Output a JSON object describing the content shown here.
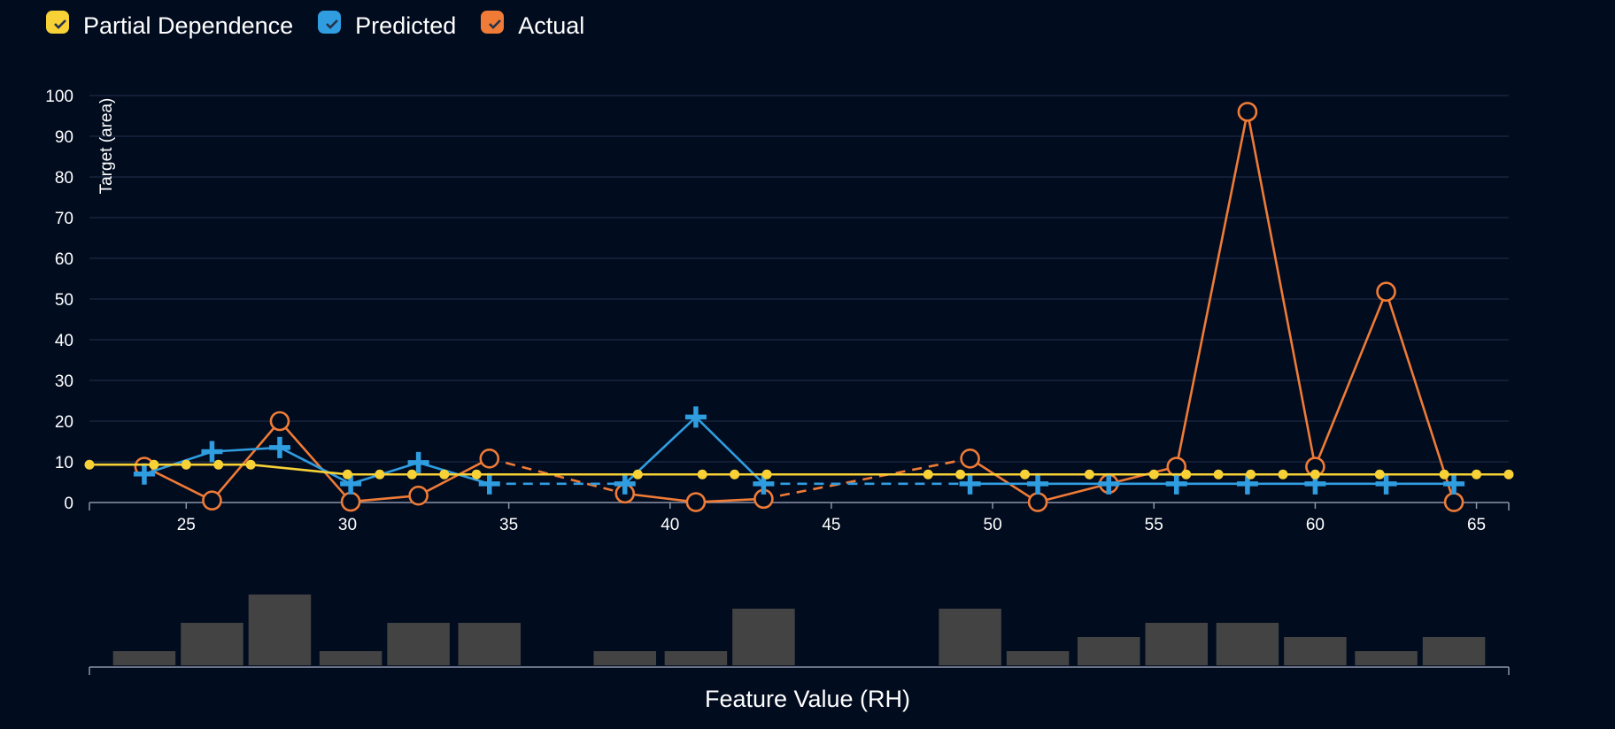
{
  "colors": {
    "background": "#020c1f",
    "grid": "#1c2a44",
    "axis": "#8b94a8",
    "partial": "#f7d136",
    "predicted": "#2f9de0",
    "actual": "#ef7b36",
    "histogram": "#434343"
  },
  "legend": [
    {
      "label": "Partial Dependence",
      "color": "#f7d136",
      "icon": "check-icon"
    },
    {
      "label": "Predicted",
      "color": "#2f9de0",
      "icon": "check-icon"
    },
    {
      "label": "Actual",
      "color": "#ef7b36",
      "icon": "check-icon"
    }
  ],
  "chart_data": {
    "type": "line",
    "xlabel": "Feature Value (RH)",
    "ylabel": "Target (area)",
    "xlim": [
      22,
      66
    ],
    "ylim": [
      0,
      100
    ],
    "x_ticks": [
      25,
      30,
      35,
      40,
      45,
      50,
      55,
      60,
      65
    ],
    "y_ticks": [
      0,
      10,
      20,
      30,
      40,
      50,
      60,
      70,
      80,
      90,
      100
    ],
    "grid": true,
    "legend_position": "top-left",
    "series": [
      {
        "name": "Partial Dependence",
        "marker": "dot",
        "x": [
          22,
          24,
          25,
          26,
          27,
          30,
          31,
          32,
          33,
          34,
          39,
          41,
          42,
          43,
          48,
          49,
          51,
          53,
          55,
          56,
          57,
          58,
          59,
          60,
          62,
          64,
          65,
          66
        ],
        "y": [
          9.3,
          9.3,
          9.3,
          9.3,
          9.3,
          6.9,
          6.9,
          6.9,
          6.9,
          6.9,
          6.9,
          6.9,
          6.9,
          6.9,
          6.9,
          6.9,
          6.9,
          6.9,
          6.9,
          6.9,
          6.9,
          6.9,
          6.9,
          6.9,
          6.9,
          6.9,
          6.9,
          6.9
        ]
      },
      {
        "name": "Predicted",
        "marker": "plus",
        "x": [
          23.7,
          25.8,
          27.9,
          30.1,
          32.2,
          34.4,
          38.6,
          40.8,
          42.9,
          49.3,
          51.4,
          53.6,
          55.7,
          57.9,
          60.0,
          62.2,
          64.3
        ],
        "y": [
          7.0,
          12.5,
          13.5,
          4.6,
          9.8,
          4.6,
          4.6,
          21.0,
          4.6,
          4.6,
          4.6,
          4.6,
          4.6,
          4.6,
          4.6,
          4.6,
          4.6
        ],
        "dashed_segments": [
          [
            34.4,
            38.6
          ],
          [
            42.9,
            49.3
          ]
        ]
      },
      {
        "name": "Actual",
        "marker": "circle",
        "x": [
          23.7,
          25.8,
          27.9,
          30.1,
          32.2,
          34.4,
          38.6,
          40.8,
          42.9,
          49.3,
          51.4,
          53.6,
          55.7,
          57.9,
          60.0,
          62.2,
          64.3
        ],
        "y": [
          8.8,
          0.5,
          20.0,
          0.2,
          1.7,
          10.8,
          2.2,
          0.1,
          0.9,
          10.8,
          0.1,
          4.6,
          8.8,
          96.0,
          8.8,
          51.8,
          0.1
        ],
        "dashed_segments": [
          [
            34.4,
            38.6
          ],
          [
            42.9,
            49.3
          ]
        ]
      }
    ],
    "histogram": {
      "x": [
        23.7,
        25.8,
        27.9,
        30.1,
        32.2,
        34.4,
        36.5,
        38.6,
        40.8,
        42.9,
        45.0,
        47.1,
        49.3,
        51.4,
        53.6,
        55.7,
        57.9,
        60.0,
        62.2,
        64.3
      ],
      "counts": [
        1,
        3,
        5,
        1,
        3,
        3,
        0,
        1,
        1,
        4,
        0,
        0,
        4,
        1,
        2,
        3,
        3,
        2,
        1,
        2
      ]
    }
  }
}
